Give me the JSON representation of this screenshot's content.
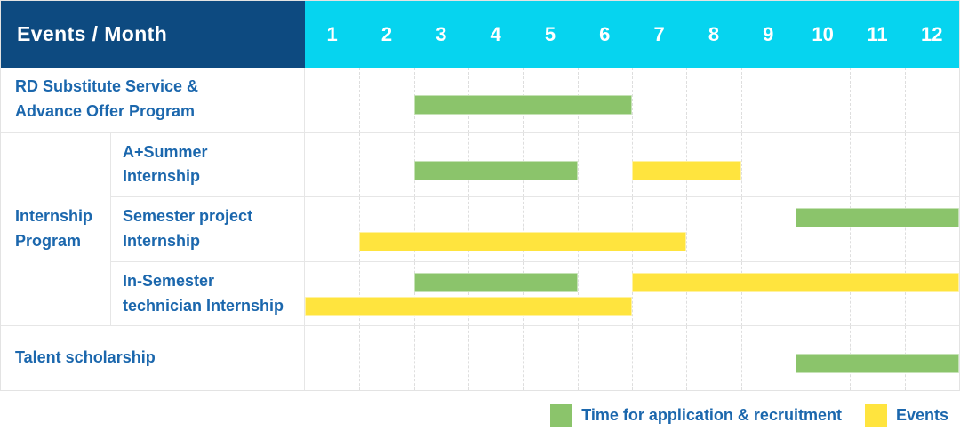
{
  "header": {
    "title": "Events / Month",
    "months": [
      "1",
      "2",
      "3",
      "4",
      "5",
      "6",
      "7",
      "8",
      "9",
      "10",
      "11",
      "12"
    ]
  },
  "colors": {
    "navy": "#0d4a80",
    "cyan": "#06d4ef",
    "green": "#8bc46b",
    "yellow": "#ffe43e",
    "text_blue": "#1b67ad"
  },
  "legend": {
    "items": [
      {
        "key": "application",
        "color_key": "green",
        "label": "Time for application & recruitment"
      },
      {
        "key": "events",
        "color_key": "yellow",
        "label": "Events"
      }
    ]
  },
  "chart_data": {
    "type": "gantt",
    "title": "Events / Month",
    "x_axis": {
      "unit": "month",
      "ticks": [
        1,
        2,
        3,
        4,
        5,
        6,
        7,
        8,
        9,
        10,
        11,
        12
      ],
      "range": [
        1,
        12
      ]
    },
    "legend_position": "bottom-right",
    "group": {
      "label": "Internship Program",
      "label_lines": [
        "Internship",
        "Program"
      ]
    },
    "rows": [
      {
        "in_group": false,
        "label": "RD Substitute Service & Advance Offer Program",
        "label_lines": [
          "RD Substitute Service &",
          "Advance Offer Program"
        ],
        "lines": [
          [
            {
              "series": "application",
              "start": 3,
              "end": 6
            }
          ]
        ]
      },
      {
        "in_group": true,
        "label": "A+Summer Internship",
        "label_lines": [
          "A+Summer",
          "Internship"
        ],
        "lines": [
          [
            {
              "series": "application",
              "start": 3,
              "end": 5
            },
            {
              "series": "events",
              "start": 7,
              "end": 8
            }
          ]
        ]
      },
      {
        "in_group": true,
        "label": "Semester project Internship",
        "label_lines": [
          "Semester project",
          "Internship"
        ],
        "lines": [
          [
            {
              "series": "application",
              "start": 10,
              "end": 12
            }
          ],
          [
            {
              "series": "events",
              "start": 2,
              "end": 7
            }
          ]
        ]
      },
      {
        "in_group": true,
        "label": "In-Semester technician Internship",
        "label_lines": [
          "In-Semester",
          "technician Internship"
        ],
        "lines": [
          [
            {
              "series": "application",
              "start": 3,
              "end": 5
            },
            {
              "series": "events",
              "start": 7,
              "end": 12
            }
          ],
          [
            {
              "series": "events",
              "start": 1,
              "end": 6
            }
          ]
        ]
      },
      {
        "in_group": false,
        "label": "Talent scholarship",
        "label_lines": [
          "Talent scholarship"
        ],
        "lines": [
          [
            {
              "series": "application",
              "start": 10,
              "end": 12
            }
          ]
        ]
      }
    ]
  }
}
